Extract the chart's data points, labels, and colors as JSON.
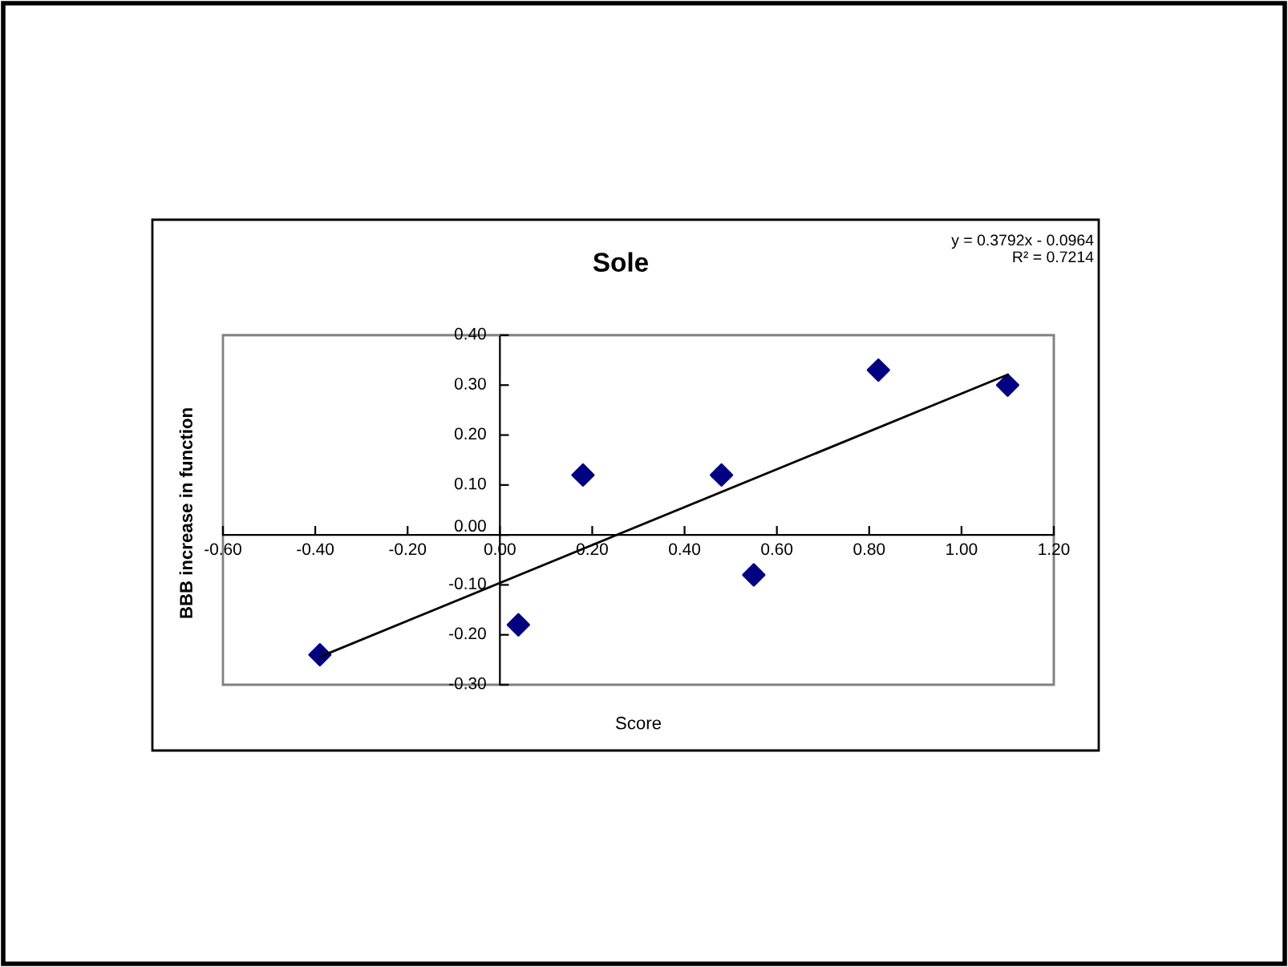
{
  "chart_data": {
    "type": "scatter",
    "title": "Sole",
    "xlabel": "Score",
    "ylabel": "BBB increase in function",
    "annotations": [
      "y = 0.3792x - 0.0964\nR² = 0.7214"
    ],
    "series": [
      {
        "color": "#000080",
        "marker": "diamond",
        "x": [
          -0.39,
          0.04,
          0.18,
          0.48,
          0.55,
          0.82,
          1.1
        ],
        "values": [
          -0.24,
          -0.18,
          0.12,
          0.12,
          -0.08,
          0.33,
          0.3
        ]
      },
      {
        "type": "line",
        "color": "#000000",
        "x": [
          -0.39,
          1.1
        ],
        "values": [
          -0.244,
          0.321
        ]
      }
    ],
    "xlim": [
      -0.6,
      1.2
    ],
    "xticks": [
      {
        "value": -0.6,
        "label": "-0.60"
      },
      {
        "value": -0.4,
        "label": "-0.40"
      },
      {
        "value": -0.2,
        "label": "-0.20"
      },
      {
        "value": 0,
        "label": "0.00"
      },
      {
        "value": 0.2,
        "label": "0.20"
      },
      {
        "value": 0.4,
        "label": "0.40"
      },
      {
        "value": 0.6,
        "label": "0.60"
      },
      {
        "value": 0.8,
        "label": "0.80"
      },
      {
        "value": 1.0,
        "label": "1.00"
      },
      {
        "value": 1.2,
        "label": "1.20"
      }
    ],
    "ylim": [
      -0.3,
      0.4
    ],
    "yticks": [
      {
        "value": -0.3,
        "label": "-0.30"
      },
      {
        "value": -0.2,
        "label": "-0.20"
      },
      {
        "value": -0.1,
        "label": "-0.10"
      },
      {
        "value": 0,
        "label": "0.00"
      },
      {
        "value": 0.1,
        "label": "0.10"
      },
      {
        "value": 0.2,
        "label": "0.20"
      },
      {
        "value": 0.3,
        "label": "0.30"
      },
      {
        "value": 0.4,
        "label": "0.40"
      }
    ],
    "grid": false,
    "legend": false
  }
}
